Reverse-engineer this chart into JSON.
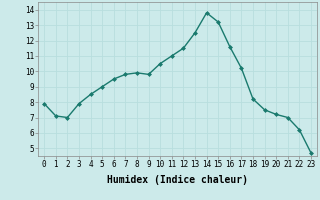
{
  "x": [
    0,
    1,
    2,
    3,
    4,
    5,
    6,
    7,
    8,
    9,
    10,
    11,
    12,
    13,
    14,
    15,
    16,
    17,
    18,
    19,
    20,
    21,
    22,
    23
  ],
  "y": [
    7.9,
    7.1,
    7.0,
    7.9,
    8.5,
    9.0,
    9.5,
    9.8,
    9.9,
    9.8,
    10.5,
    11.0,
    11.5,
    12.5,
    13.8,
    13.2,
    11.6,
    10.2,
    8.2,
    7.5,
    7.2,
    7.0,
    6.2,
    4.7
  ],
  "line_color": "#1a7a6e",
  "marker": "D",
  "markersize": 2.0,
  "linewidth": 1.0,
  "xlabel": "Humidex (Indice chaleur)",
  "xlabel_fontsize": 7,
  "ylim": [
    4.5,
    14.5
  ],
  "xlim": [
    -0.5,
    23.5
  ],
  "yticks": [
    5,
    6,
    7,
    8,
    9,
    10,
    11,
    12,
    13,
    14
  ],
  "xtick_labels": [
    "0",
    "1",
    "2",
    "3",
    "4",
    "5",
    "6",
    "7",
    "8",
    "9",
    "10",
    "11",
    "12",
    "13",
    "14",
    "15",
    "16",
    "17",
    "18",
    "19",
    "20",
    "21",
    "22",
    "23"
  ],
  "grid_color": "#b8dede",
  "bg_color": "#cceaea",
  "tick_fontsize": 5.5,
  "spine_color": "#888888"
}
